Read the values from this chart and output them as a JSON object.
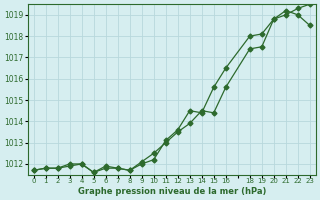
{
  "hours": [
    0,
    1,
    2,
    3,
    4,
    5,
    6,
    7,
    8,
    9,
    10,
    11,
    12,
    13,
    14,
    15,
    16,
    18,
    19,
    20,
    21,
    22,
    23
  ],
  "series1": [
    1011.7,
    1011.8,
    1011.8,
    1011.9,
    1012.0,
    1011.6,
    1011.8,
    1011.8,
    1011.7,
    1012.0,
    1012.2,
    1013.1,
    1013.6,
    1014.5,
    1014.4,
    1015.6,
    1016.5,
    1018.0,
    1018.1,
    1018.8,
    1019.0,
    1019.3,
    1019.5
  ],
  "series2": [
    1011.7,
    1011.8,
    1011.8,
    1012.0,
    1012.0,
    1011.6,
    1011.9,
    1011.8,
    1011.7,
    1012.1,
    1012.5,
    1013.0,
    1013.5,
    1013.9,
    1014.5,
    1014.4,
    1015.6,
    1017.4,
    1017.5,
    1018.8,
    1019.2,
    1019.0,
    1018.5
  ],
  "line_color": "#2d6a2d",
  "bg_color": "#d6eef0",
  "grid_color": "#b8d8dc",
  "title": "Graphe pression niveau de la mer (hPa)",
  "ylim_min": 1011.5,
  "ylim_max": 1019.5,
  "yticks": [
    1012,
    1013,
    1014,
    1015,
    1016,
    1017,
    1018,
    1019
  ],
  "xtick_positions": [
    0,
    1,
    2,
    3,
    4,
    5,
    6,
    7,
    8,
    9,
    10,
    11,
    12,
    13,
    14,
    15,
    16,
    17,
    18,
    19,
    20,
    21,
    22,
    23
  ],
  "xtick_labels": [
    "0",
    "1",
    "2",
    "3",
    "4",
    "5",
    "6",
    "7",
    "8",
    "9",
    "10",
    "11",
    "12",
    "13",
    "14",
    "15",
    "16",
    "",
    "18",
    "19",
    "20",
    "21",
    "22",
    "23"
  ]
}
